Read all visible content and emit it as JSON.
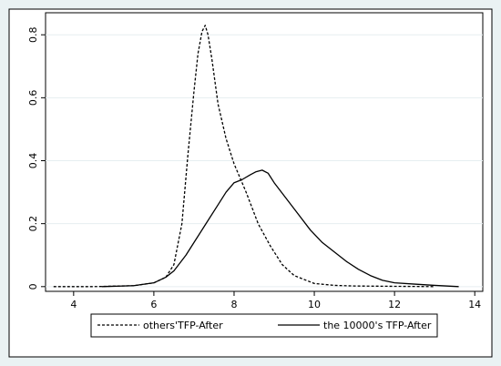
{
  "chart_data": {
    "type": "line",
    "title": "",
    "xlabel": "",
    "ylabel": "",
    "xlim": [
      3.3,
      14.2
    ],
    "ylim": [
      -0.015,
      0.87
    ],
    "xticks": [
      4,
      6,
      8,
      10,
      12,
      14
    ],
    "yticks": [
      0,
      0.2,
      0.4,
      0.6,
      0.8
    ],
    "xtick_labels": [
      "4",
      "6",
      "8",
      "10",
      "12",
      "14"
    ],
    "ytick_labels": [
      "0",
      "0.2",
      "0.4",
      "0.6",
      "0.8"
    ],
    "grid": "horizontal",
    "legend_position": "bottom",
    "series": [
      {
        "name": "others'TFP-After",
        "style": "dashed",
        "x": [
          3.5,
          4.5,
          5.5,
          6.0,
          6.3,
          6.5,
          6.7,
          6.85,
          7.0,
          7.1,
          7.2,
          7.28,
          7.35,
          7.45,
          7.6,
          7.8,
          8.0,
          8.3,
          8.6,
          8.9,
          9.2,
          9.5,
          10.0,
          10.5,
          11.0,
          12.0,
          13.0
        ],
        "y": [
          0.0,
          0.0,
          0.003,
          0.012,
          0.03,
          0.07,
          0.2,
          0.42,
          0.62,
          0.74,
          0.81,
          0.83,
          0.8,
          0.72,
          0.58,
          0.47,
          0.39,
          0.3,
          0.2,
          0.13,
          0.07,
          0.035,
          0.01,
          0.004,
          0.002,
          0.001,
          0.0
        ]
      },
      {
        "name": "the 10000's TFP-After",
        "style": "solid",
        "x": [
          4.7,
          5.5,
          6.0,
          6.3,
          6.5,
          6.8,
          7.0,
          7.3,
          7.6,
          7.8,
          8.0,
          8.2,
          8.4,
          8.55,
          8.7,
          8.85,
          9.0,
          9.3,
          9.6,
          9.9,
          10.2,
          10.5,
          10.8,
          11.1,
          11.4,
          11.7,
          12.0,
          12.5,
          13.0,
          13.6
        ],
        "y": [
          0.0,
          0.003,
          0.012,
          0.03,
          0.05,
          0.1,
          0.14,
          0.2,
          0.26,
          0.3,
          0.33,
          0.34,
          0.355,
          0.365,
          0.37,
          0.36,
          0.33,
          0.28,
          0.23,
          0.18,
          0.14,
          0.11,
          0.08,
          0.055,
          0.035,
          0.02,
          0.012,
          0.008,
          0.004,
          0.0
        ]
      }
    ]
  }
}
